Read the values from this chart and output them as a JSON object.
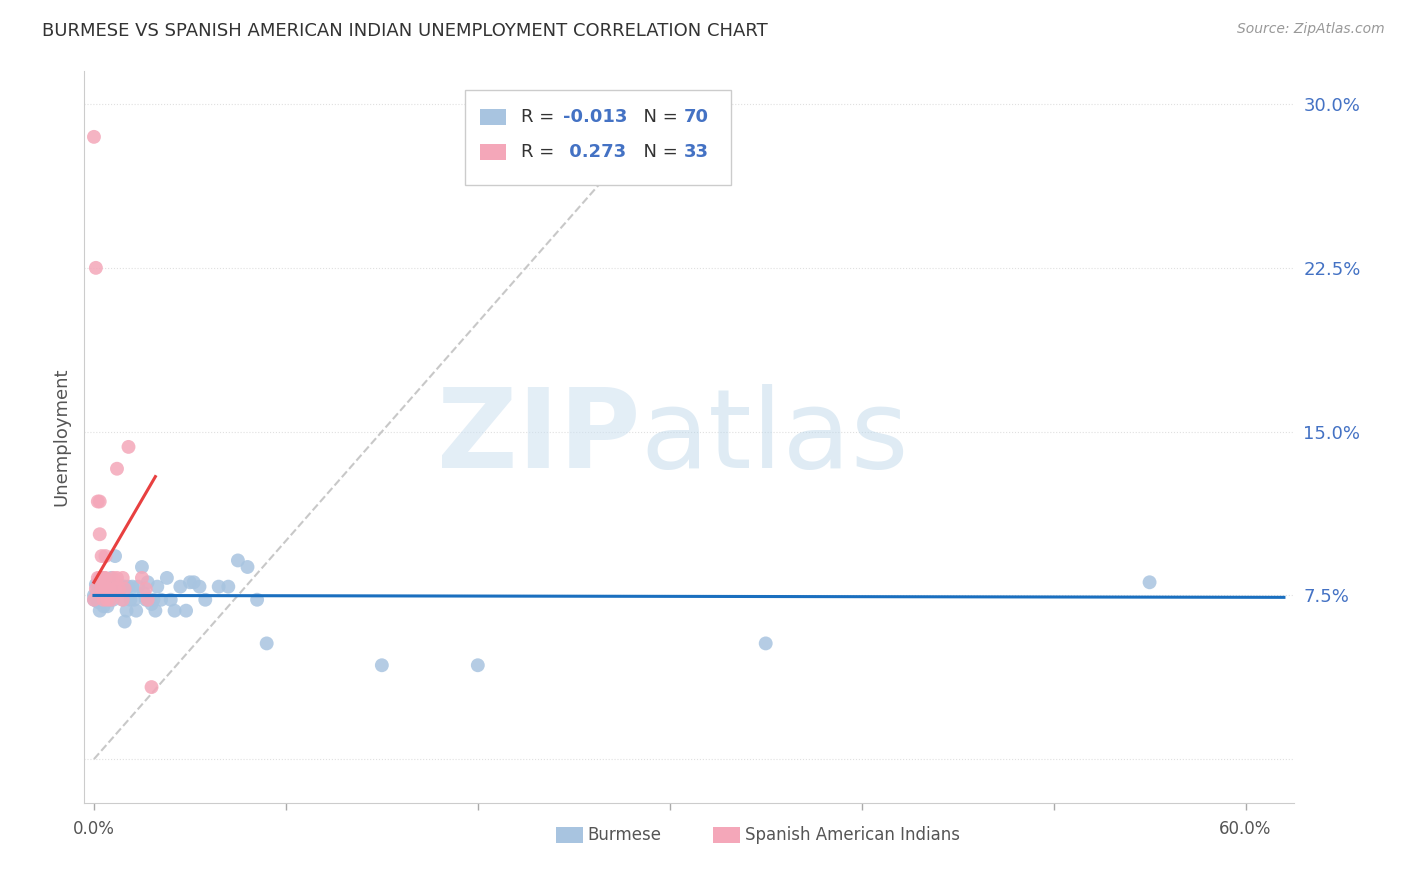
{
  "title": "BURMESE VS SPANISH AMERICAN INDIAN UNEMPLOYMENT CORRELATION CHART",
  "source": "Source: ZipAtlas.com",
  "ylabel": "Unemployment",
  "yticks": [
    0.0,
    0.075,
    0.15,
    0.225,
    0.3
  ],
  "ytick_labels": [
    "",
    "7.5%",
    "15.0%",
    "22.5%",
    "30.0%"
  ],
  "xlim": [
    -0.005,
    0.625
  ],
  "ylim": [
    -0.02,
    0.315
  ],
  "burmese_color": "#a8c4e0",
  "spanish_color": "#f4a7b9",
  "trend_blue_color": "#1a6fbf",
  "trend_pink_color": "#e84040",
  "trend_diag_color": "#c8c8c8",
  "r_burmese": -0.013,
  "n_burmese": 70,
  "r_spanish": 0.273,
  "n_spanish": 33,
  "burmese_x": [
    0.0,
    0.001,
    0.001,
    0.002,
    0.002,
    0.002,
    0.003,
    0.003,
    0.003,
    0.003,
    0.004,
    0.004,
    0.005,
    0.005,
    0.005,
    0.006,
    0.006,
    0.007,
    0.007,
    0.008,
    0.008,
    0.009,
    0.009,
    0.01,
    0.01,
    0.011,
    0.012,
    0.013,
    0.014,
    0.015,
    0.015,
    0.016,
    0.016,
    0.017,
    0.018,
    0.019,
    0.02,
    0.021,
    0.022,
    0.023,
    0.025,
    0.026,
    0.027,
    0.028,
    0.028,
    0.03,
    0.031,
    0.032,
    0.033,
    0.035,
    0.038,
    0.04,
    0.042,
    0.045,
    0.048,
    0.05,
    0.052,
    0.055,
    0.058,
    0.065,
    0.07,
    0.075,
    0.08,
    0.085,
    0.09,
    0.15,
    0.2,
    0.35,
    0.55,
    0.0
  ],
  "burmese_y": [
    0.075,
    0.075,
    0.08,
    0.072,
    0.08,
    0.075,
    0.068,
    0.08,
    0.075,
    0.082,
    0.073,
    0.078,
    0.075,
    0.07,
    0.083,
    0.073,
    0.078,
    0.07,
    0.078,
    0.073,
    0.079,
    0.083,
    0.078,
    0.073,
    0.079,
    0.093,
    0.079,
    0.079,
    0.079,
    0.079,
    0.073,
    0.079,
    0.063,
    0.068,
    0.079,
    0.073,
    0.079,
    0.073,
    0.068,
    0.079,
    0.088,
    0.076,
    0.073,
    0.073,
    0.081,
    0.071,
    0.073,
    0.068,
    0.079,
    0.073,
    0.083,
    0.073,
    0.068,
    0.079,
    0.068,
    0.081,
    0.081,
    0.079,
    0.073,
    0.079,
    0.079,
    0.091,
    0.088,
    0.073,
    0.053,
    0.043,
    0.043,
    0.053,
    0.081,
    0.073
  ],
  "spanish_x": [
    0.0,
    0.0,
    0.001,
    0.001,
    0.002,
    0.002,
    0.003,
    0.003,
    0.003,
    0.004,
    0.004,
    0.005,
    0.005,
    0.006,
    0.006,
    0.006,
    0.007,
    0.007,
    0.008,
    0.009,
    0.01,
    0.011,
    0.012,
    0.012,
    0.013,
    0.015,
    0.015,
    0.016,
    0.018,
    0.025,
    0.027,
    0.028,
    0.03
  ],
  "spanish_y": [
    0.285,
    0.073,
    0.225,
    0.078,
    0.118,
    0.083,
    0.118,
    0.103,
    0.083,
    0.093,
    0.078,
    0.083,
    0.073,
    0.093,
    0.078,
    0.083,
    0.078,
    0.073,
    0.078,
    0.073,
    0.083,
    0.078,
    0.083,
    0.133,
    0.078,
    0.073,
    0.083,
    0.078,
    0.143,
    0.083,
    0.078,
    0.073,
    0.033
  ]
}
